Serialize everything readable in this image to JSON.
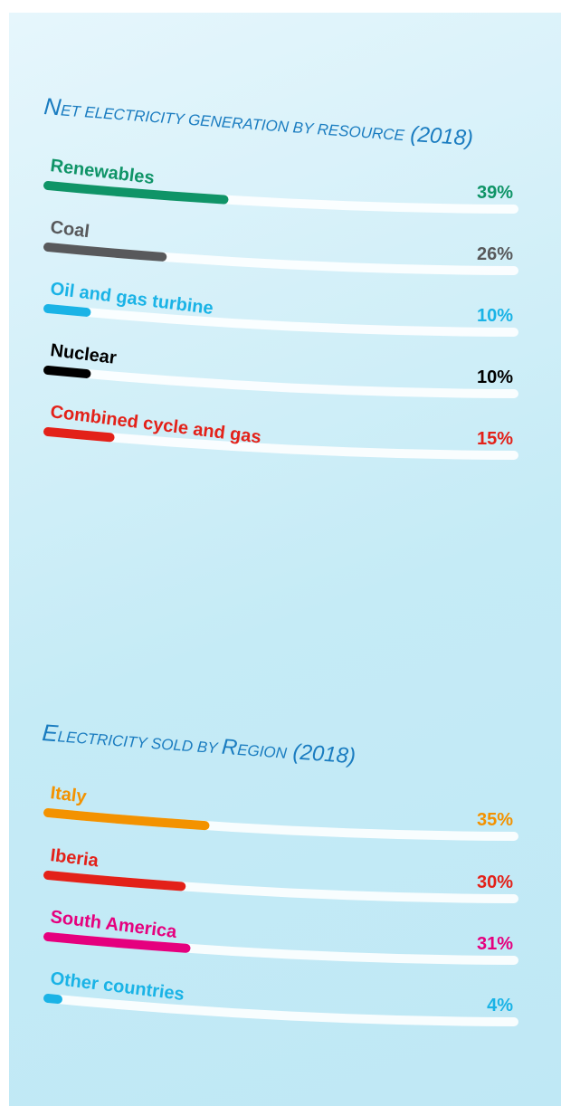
{
  "chart_data": [
    {
      "type": "bar",
      "title": "Net electricity generation by resource (2018)",
      "title_parts": [
        "N",
        "ET ELECTRICITY GENERATION BY RESOURCE",
        " (2018)"
      ],
      "unit": "%",
      "xlim": [
        0,
        100
      ],
      "categories": [
        "Renewables",
        "Coal",
        "Oil and gas turbine",
        "Nuclear",
        "Combined cycle and gas"
      ],
      "values": [
        39,
        26,
        10,
        10,
        15
      ],
      "labels": [
        "39%",
        "26%",
        "10%",
        "10%",
        "15%"
      ],
      "colors": [
        "#0f9467",
        "#58595b",
        "#1ab3e6",
        "#000000",
        "#e32119"
      ]
    },
    {
      "type": "bar",
      "title": "Electricity sold by Region (2018)",
      "title_parts": [
        "E",
        "LECTRICITY SOLD BY ",
        "R",
        "EGION",
        " (2018)"
      ],
      "unit": "%",
      "xlim": [
        0,
        100
      ],
      "categories": [
        "Italy",
        "Iberia",
        "South America",
        "Other countries"
      ],
      "values": [
        35,
        30,
        31,
        4
      ],
      "labels": [
        "35%",
        "30%",
        "31%",
        "4%"
      ],
      "colors": [
        "#f39200",
        "#e32119",
        "#e5007e",
        "#1ab3e6"
      ]
    }
  ]
}
